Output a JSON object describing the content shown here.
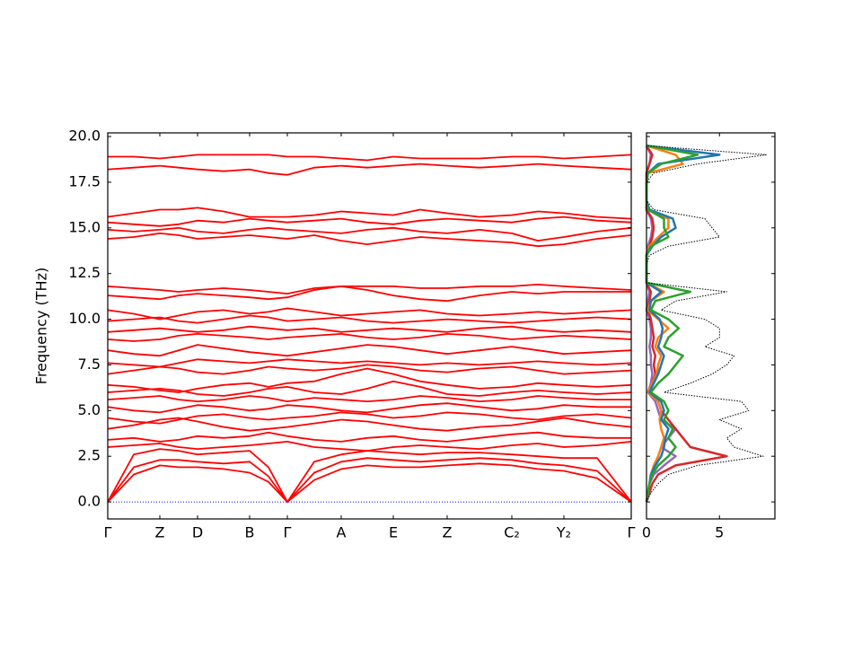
{
  "chart_data": [
    {
      "type": "line",
      "y_label": "Frequency (THz)",
      "color": "#ff0000",
      "xlim": [
        0,
        5.83
      ],
      "ylim": [
        -0.93,
        20.2
      ],
      "xticks": [
        {
          "value": 0,
          "label": "Γ"
        },
        {
          "value": 0.58,
          "label": "Z"
        },
        {
          "value": 1.0,
          "label": "D"
        },
        {
          "value": 1.58,
          "label": "B"
        },
        {
          "value": 2.0,
          "label": "Γ"
        },
        {
          "value": 2.6,
          "label": "A"
        },
        {
          "value": 3.18,
          "label": "E"
        },
        {
          "value": 3.78,
          "label": "Z"
        },
        {
          "value": 4.5,
          "label": "C₂"
        },
        {
          "value": 5.08,
          "label": "Y₂"
        },
        {
          "value": 5.83,
          "label": "Γ"
        }
      ],
      "yticks": [
        {
          "value": 0,
          "label": "0.0"
        },
        {
          "value": 2.5,
          "label": "2.5"
        },
        {
          "value": 5,
          "label": "5.0"
        },
        {
          "value": 7.5,
          "label": "7.5"
        },
        {
          "value": 10,
          "label": "10.0"
        },
        {
          "value": 12.5,
          "label": "12.5"
        },
        {
          "value": 15,
          "label": "15.0"
        },
        {
          "value": 17.5,
          "label": "17.5"
        },
        {
          "value": 20,
          "label": "20.0"
        }
      ],
      "x": [
        0,
        0.29,
        0.58,
        0.79,
        1.0,
        1.29,
        1.58,
        1.79,
        2.0,
        2.3,
        2.6,
        2.89,
        3.18,
        3.48,
        3.78,
        4.14,
        4.5,
        4.79,
        5.08,
        5.45,
        5.83
      ],
      "series": [
        {
          "values": [
            0,
            1.5,
            2.0,
            1.9,
            1.9,
            1.8,
            1.6,
            1.1,
            0,
            1.2,
            1.8,
            2.0,
            1.9,
            1.9,
            2.0,
            2.1,
            2.0,
            1.8,
            1.7,
            1.3,
            0
          ]
        },
        {
          "values": [
            0,
            1.9,
            2.3,
            2.3,
            2.2,
            2.1,
            2.2,
            1.4,
            0,
            1.6,
            2.2,
            2.4,
            2.3,
            2.2,
            2.3,
            2.4,
            2.3,
            2.1,
            2.0,
            1.7,
            0
          ]
        },
        {
          "values": [
            0,
            2.6,
            2.9,
            2.8,
            2.6,
            2.7,
            2.8,
            1.9,
            0,
            2.2,
            2.6,
            2.8,
            2.7,
            2.6,
            2.7,
            2.7,
            2.6,
            2.5,
            2.4,
            2.4,
            0
          ]
        },
        {
          "values": [
            3.0,
            3.1,
            3.2,
            3.0,
            2.9,
            3.0,
            3.1,
            3.2,
            3.3,
            3.0,
            2.9,
            2.8,
            3.0,
            3.1,
            3.0,
            2.9,
            3.1,
            3.2,
            3.0,
            3.1,
            3.3
          ]
        },
        {
          "values": [
            3.4,
            3.5,
            3.3,
            3.4,
            3.6,
            3.5,
            3.6,
            3.8,
            3.6,
            3.4,
            3.3,
            3.5,
            3.6,
            3.4,
            3.3,
            3.5,
            3.7,
            3.8,
            3.6,
            3.5,
            3.5
          ]
        },
        {
          "values": [
            4.0,
            4.2,
            4.5,
            4.6,
            4.4,
            4.1,
            3.9,
            4.0,
            4.1,
            4.3,
            4.5,
            4.4,
            4.2,
            4.0,
            3.9,
            4.1,
            4.2,
            4.4,
            4.6,
            4.3,
            4.1
          ]
        },
        {
          "values": [
            4.6,
            4.4,
            4.3,
            4.5,
            4.7,
            4.8,
            4.6,
            4.5,
            4.6,
            4.7,
            4.9,
            4.8,
            4.6,
            4.7,
            4.9,
            4.8,
            4.6,
            4.5,
            4.7,
            4.8,
            4.6
          ]
        },
        {
          "values": [
            5.2,
            5.0,
            4.9,
            5.1,
            5.3,
            5.2,
            5.0,
            5.1,
            5.3,
            5.2,
            5.0,
            4.9,
            5.1,
            5.3,
            5.4,
            5.2,
            5.0,
            5.1,
            5.3,
            5.2,
            5.2
          ]
        },
        {
          "values": [
            5.6,
            5.7,
            5.8,
            5.6,
            5.5,
            5.6,
            5.8,
            5.7,
            5.5,
            5.7,
            5.6,
            5.5,
            5.6,
            5.8,
            5.7,
            5.5,
            5.6,
            5.8,
            5.7,
            5.6,
            5.6
          ]
        },
        {
          "values": [
            6.0,
            6.1,
            6.2,
            6.1,
            5.9,
            5.8,
            6.0,
            6.2,
            6.3,
            6.0,
            5.9,
            6.2,
            6.6,
            6.3,
            5.9,
            5.8,
            6.0,
            6.1,
            6.0,
            5.9,
            6.0
          ]
        },
        {
          "values": [
            6.4,
            6.3,
            6.1,
            6.0,
            6.2,
            6.4,
            6.5,
            6.3,
            6.5,
            6.6,
            7.0,
            7.3,
            7.0,
            6.6,
            6.4,
            6.2,
            6.3,
            6.5,
            6.4,
            6.3,
            6.4
          ]
        },
        {
          "values": [
            7.0,
            7.2,
            7.4,
            7.3,
            7.1,
            7.0,
            7.2,
            7.4,
            7.3,
            7.2,
            7.3,
            7.5,
            7.4,
            7.2,
            7.1,
            7.3,
            7.4,
            7.2,
            7.0,
            7.1,
            7.2
          ]
        },
        {
          "values": [
            7.6,
            7.5,
            7.4,
            7.6,
            7.8,
            7.7,
            7.6,
            7.7,
            7.8,
            7.7,
            7.6,
            7.7,
            7.6,
            7.5,
            7.6,
            7.5,
            7.6,
            7.7,
            7.6,
            7.5,
            7.6
          ]
        },
        {
          "values": [
            8.3,
            8.1,
            8.0,
            8.3,
            8.6,
            8.4,
            8.2,
            8.1,
            8.0,
            8.2,
            8.4,
            8.6,
            8.5,
            8.3,
            8.1,
            8.3,
            8.5,
            8.3,
            8.1,
            8.2,
            8.3
          ]
        },
        {
          "values": [
            8.9,
            8.8,
            8.9,
            9.1,
            9.2,
            9.1,
            9.0,
            8.9,
            9.0,
            9.1,
            9.2,
            9.0,
            8.9,
            9.0,
            9.2,
            9.1,
            8.9,
            9.0,
            9.1,
            9.0,
            8.9
          ]
        },
        {
          "values": [
            9.3,
            9.4,
            9.5,
            9.4,
            9.3,
            9.4,
            9.6,
            9.5,
            9.4,
            9.5,
            9.3,
            9.4,
            9.5,
            9.4,
            9.3,
            9.5,
            9.6,
            9.4,
            9.3,
            9.4,
            9.3
          ]
        },
        {
          "values": [
            9.9,
            10.0,
            10.1,
            9.9,
            9.8,
            10.0,
            10.2,
            10.1,
            9.9,
            10.0,
            10.1,
            9.9,
            9.8,
            9.9,
            10.0,
            9.9,
            9.8,
            9.9,
            10.0,
            10.1,
            10.0
          ]
        },
        {
          "values": [
            10.5,
            10.3,
            10.0,
            10.2,
            10.4,
            10.5,
            10.3,
            10.4,
            10.6,
            10.4,
            10.2,
            10.3,
            10.4,
            10.5,
            10.3,
            10.2,
            10.3,
            10.4,
            10.3,
            10.4,
            10.5
          ]
        },
        {
          "values": [
            11.3,
            11.2,
            11.1,
            11.3,
            11.4,
            11.3,
            11.2,
            11.1,
            11.2,
            11.6,
            11.8,
            11.6,
            11.3,
            11.1,
            11.0,
            11.3,
            11.5,
            11.4,
            11.5,
            11.5,
            11.5
          ]
        },
        {
          "values": [
            11.8,
            11.7,
            11.6,
            11.5,
            11.6,
            11.7,
            11.6,
            11.5,
            11.4,
            11.7,
            11.8,
            11.8,
            11.8,
            11.7,
            11.7,
            11.8,
            11.8,
            11.9,
            11.8,
            11.7,
            11.6
          ]
        },
        {
          "values": [
            14.4,
            14.5,
            14.7,
            14.6,
            14.4,
            14.5,
            14.6,
            14.5,
            14.4,
            14.6,
            14.3,
            14.1,
            14.3,
            14.5,
            14.4,
            14.3,
            14.2,
            14.0,
            14.1,
            14.4,
            14.6
          ]
        },
        {
          "values": [
            14.9,
            14.8,
            14.9,
            15.0,
            14.8,
            14.7,
            14.9,
            15.0,
            14.9,
            14.8,
            14.7,
            14.9,
            15.0,
            14.8,
            14.7,
            14.9,
            14.7,
            14.3,
            14.5,
            14.8,
            15.0
          ]
        },
        {
          "values": [
            15.3,
            15.2,
            15.1,
            15.2,
            15.4,
            15.3,
            15.5,
            15.4,
            15.3,
            15.4,
            15.5,
            15.3,
            15.2,
            15.4,
            15.5,
            15.4,
            15.3,
            15.5,
            15.6,
            15.4,
            15.3
          ]
        },
        {
          "values": [
            15.6,
            15.8,
            16.0,
            16.0,
            16.1,
            15.9,
            15.6,
            15.6,
            15.6,
            15.7,
            15.9,
            15.8,
            15.7,
            16.0,
            15.8,
            15.6,
            15.7,
            15.9,
            15.8,
            15.6,
            15.5
          ]
        },
        {
          "values": [
            18.2,
            18.3,
            18.4,
            18.3,
            18.2,
            18.1,
            18.2,
            18.0,
            17.9,
            18.3,
            18.4,
            18.3,
            18.4,
            18.5,
            18.4,
            18.3,
            18.4,
            18.5,
            18.4,
            18.3,
            18.2
          ]
        },
        {
          "values": [
            18.9,
            18.9,
            18.8,
            18.9,
            19.0,
            19.0,
            19.0,
            19.0,
            18.9,
            18.9,
            18.8,
            18.7,
            18.9,
            18.8,
            18.8,
            18.8,
            18.9,
            18.9,
            18.8,
            18.9,
            19.0
          ]
        }
      ]
    },
    {
      "type": "dos",
      "xlim": [
        0,
        8.8
      ],
      "ylim": [
        -0.93,
        20.2
      ],
      "xticks": [
        0,
        5
      ],
      "y": [
        0,
        0.5,
        1,
        1.5,
        2,
        2.5,
        3,
        3.5,
        4,
        4.5,
        5,
        5.5,
        6,
        6.5,
        7,
        7.5,
        8,
        8.5,
        9,
        9.5,
        10,
        10.5,
        11,
        11.5,
        12,
        12.5,
        13,
        13.5,
        14,
        14.5,
        15,
        15.5,
        16,
        16.5,
        17,
        17.5,
        18,
        18.5,
        19,
        19.5
      ],
      "series": [
        {
          "color": "#9467bd",
          "values": [
            0,
            0.1,
            0.2,
            0.5,
            1.2,
            2.0,
            1.0,
            1.5,
            2.0,
            1.0,
            0.8,
            0.6,
            0.1,
            0.3,
            0.4,
            0.3,
            0.3,
            0.2,
            0.3,
            0.3,
            0.2,
            0,
            0.1,
            0.2,
            0,
            0,
            0,
            0,
            0.1,
            0.3,
            0.4,
            0.3,
            0,
            0,
            0,
            0,
            0,
            0.2,
            0.3,
            0
          ]
        },
        {
          "color": "#d62728",
          "values": [
            0,
            0.2,
            0.4,
            0.8,
            2.0,
            5.5,
            3.0,
            2.5,
            2.0,
            1.5,
            1.0,
            0.8,
            0.2,
            0.4,
            0.6,
            0.5,
            0.6,
            0.4,
            0.5,
            0.4,
            0.3,
            0.1,
            0.2,
            0.3,
            0,
            0,
            0,
            0,
            0.2,
            0.4,
            0.5,
            0.4,
            0,
            0,
            0,
            0,
            0,
            0.2,
            0.4,
            0
          ]
        },
        {
          "color": "#ff7f0e",
          "values": [
            0,
            0.1,
            0.2,
            0.3,
            0.5,
            0.8,
            1.0,
            1.2,
            1.0,
            0.9,
            1.0,
            0.8,
            0.1,
            0.4,
            0.7,
            0.8,
            1.0,
            0.6,
            0.8,
            1.5,
            0.8,
            0.1,
            0.3,
            1.2,
            0,
            0,
            0,
            0,
            0.2,
            0.8,
            1.5,
            1.5,
            0.1,
            0,
            0,
            0,
            0.1,
            2.5,
            2.0,
            0
          ]
        },
        {
          "color": "#1f77b4",
          "values": [
            0,
            0.1,
            0.2,
            0.3,
            0.6,
            1.0,
            1.2,
            1.3,
            1.5,
            1.0,
            1.2,
            1.0,
            0.2,
            0.5,
            0.8,
            1.0,
            1.2,
            0.8,
            1.0,
            1.1,
            0.9,
            0.2,
            0.3,
            1.0,
            0,
            0,
            0,
            0,
            0.4,
            1.0,
            2.0,
            1.8,
            0.2,
            0,
            0,
            0,
            0.1,
            0.8,
            5.0,
            0
          ]
        },
        {
          "color": "#2ca02c",
          "values": [
            0,
            0.1,
            0.2,
            0.4,
            0.8,
            1.5,
            2.0,
            1.5,
            1.8,
            1.2,
            1.5,
            1.2,
            0.3,
            0.8,
            1.5,
            2.0,
            2.5,
            1.2,
            1.5,
            2.2,
            1.5,
            0.3,
            0.6,
            3.0,
            0,
            0,
            0,
            0,
            0.3,
            1.5,
            1.2,
            1.2,
            0.1,
            0,
            0,
            0,
            0.1,
            1.0,
            3.5,
            0
          ]
        },
        {
          "color": "#000000",
          "dashed": true,
          "values": [
            0,
            0.3,
            0.8,
            1.5,
            3.5,
            8.0,
            6.0,
            5.5,
            6.5,
            5.0,
            7.0,
            6.5,
            1.2,
            3.0,
            4.5,
            5.5,
            6.0,
            4.0,
            5.0,
            5.0,
            4.0,
            1.0,
            2.0,
            5.5,
            0,
            0,
            0,
            0.2,
            1.5,
            5.0,
            4.5,
            4.0,
            0.5,
            0,
            0,
            0,
            0.5,
            3.5,
            8.2,
            0
          ]
        }
      ]
    }
  ]
}
